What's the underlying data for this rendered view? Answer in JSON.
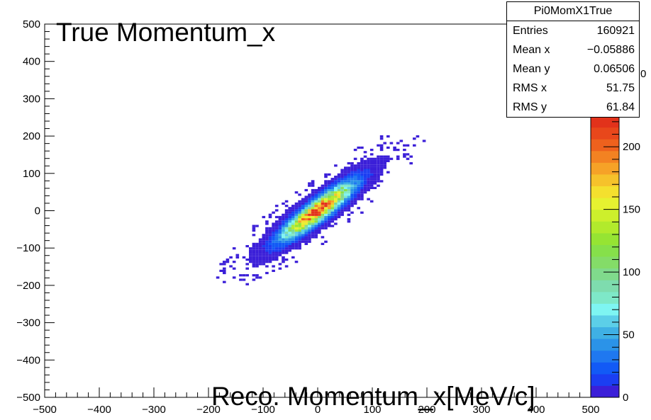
{
  "chart_data": {
    "type": "heatmap",
    "title": "True Momentum_x",
    "xlabel": "Reco. Momentum_x[MeV/c]",
    "ylabel": "",
    "xlim": [
      -500,
      500
    ],
    "ylim": [
      -500,
      500
    ],
    "x_ticks": [
      "−500",
      "−400",
      "−300",
      "−200",
      "−100",
      "0",
      "100",
      "200",
      "300",
      "400",
      "500"
    ],
    "y_ticks": [
      "500",
      "400",
      "300",
      "200",
      "100",
      "0",
      "−100",
      "−200",
      "−300",
      "−400",
      "−500"
    ],
    "colorbar": {
      "range": [
        0,
        225
      ],
      "ticks": [
        "0",
        "50",
        "100",
        "150",
        "200"
      ],
      "partial_label": "0"
    },
    "distribution": {
      "shape": "correlated 2D Gaussian",
      "mean_x": -0.05886,
      "mean_y": 0.06506,
      "rms_x": 51.75,
      "rms_y": 61.84,
      "peak_count": 225
    },
    "stats_box": {
      "name": "Pi0MomX1True",
      "entries_label": "Entries",
      "entries": "160921",
      "mean_x_label": "Mean x",
      "mean_x": "−0.05886",
      "mean_y_label": "Mean y",
      "mean_y": "0.06506",
      "rms_x_label": "RMS x",
      "rms_x": "51.75",
      "rms_y_label": "RMS y",
      "rms_y": "61.84"
    }
  }
}
